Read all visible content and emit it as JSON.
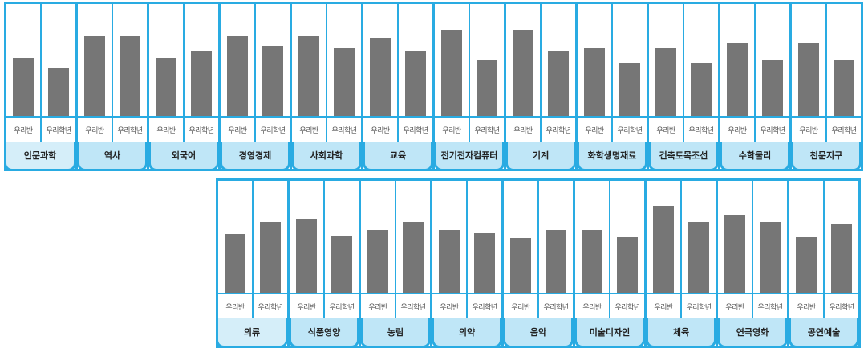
{
  "legend": {
    "a": "우리반",
    "b": "우리학년"
  },
  "chart_data": [
    {
      "type": "bar",
      "series": [
        {
          "name": "우리반"
        },
        {
          "name": "우리학년"
        }
      ],
      "categories": [
        "인문과학",
        "역사",
        "외국어",
        "경영경제",
        "사회과학",
        "교육",
        "전기전자컴퓨터",
        "기계",
        "화학생명재료",
        "건축토목조선",
        "수학물리",
        "천문지구"
      ],
      "values_a": [
        72,
        100,
        72,
        100,
        100,
        98,
        108,
        108,
        85,
        85,
        91,
        91
      ],
      "values_b": [
        60,
        100,
        81,
        88,
        85,
        81,
        70,
        81,
        66,
        66,
        70,
        70
      ],
      "ylim": [
        0,
        140
      ]
    },
    {
      "type": "bar",
      "series": [
        {
          "name": "우리반"
        },
        {
          "name": "우리학년"
        }
      ],
      "categories": [
        "의류",
        "식품영양",
        "농림",
        "의약",
        "음악",
        "미술디자인",
        "체육",
        "연극영화",
        "공연예술"
      ],
      "values_a": [
        74,
        92,
        79,
        79,
        69,
        79,
        109,
        97,
        70
      ],
      "values_b": [
        89,
        71,
        89,
        75,
        79,
        70,
        89,
        89,
        86
      ],
      "ylim": [
        0,
        140
      ]
    }
  ]
}
